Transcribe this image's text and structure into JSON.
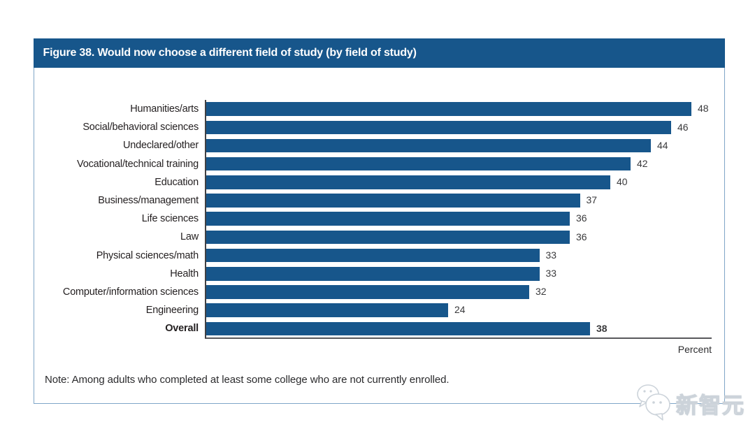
{
  "figure": {
    "title": "Figure 38. Would now choose a different field of study (by field of study)",
    "note": "Note: Among adults who completed at least some college who are not currently enrolled.",
    "axis_label": "Percent"
  },
  "chart_data": {
    "type": "bar",
    "orientation": "horizontal",
    "title": "Figure 38. Would now choose a different field of study (by field of study)",
    "categories": [
      "Humanities/arts",
      "Social/behavioral sciences",
      "Undeclared/other",
      "Vocational/technical training",
      "Education",
      "Business/management",
      "Life sciences",
      "Law",
      "Physical sciences/math",
      "Health",
      "Computer/information sciences",
      "Engineering",
      "Overall"
    ],
    "values": [
      48,
      46,
      44,
      42,
      40,
      37,
      36,
      36,
      33,
      33,
      32,
      24,
      38
    ],
    "xlabel": "Percent",
    "ylabel": "",
    "xlim": [
      0,
      50
    ],
    "grid": false,
    "legend": false,
    "data_labels": true,
    "emphasized_category": "Overall",
    "bar_color": "#17568b"
  },
  "colors": {
    "header_bg": "#17568b",
    "header_text": "#ffffff",
    "panel_border": "#7fa6c8",
    "axis_line": "#58585b",
    "label_text": "#231f20"
  },
  "watermark": {
    "text": "新智元",
    "icon": "chat-bubbles-logo-icon"
  }
}
